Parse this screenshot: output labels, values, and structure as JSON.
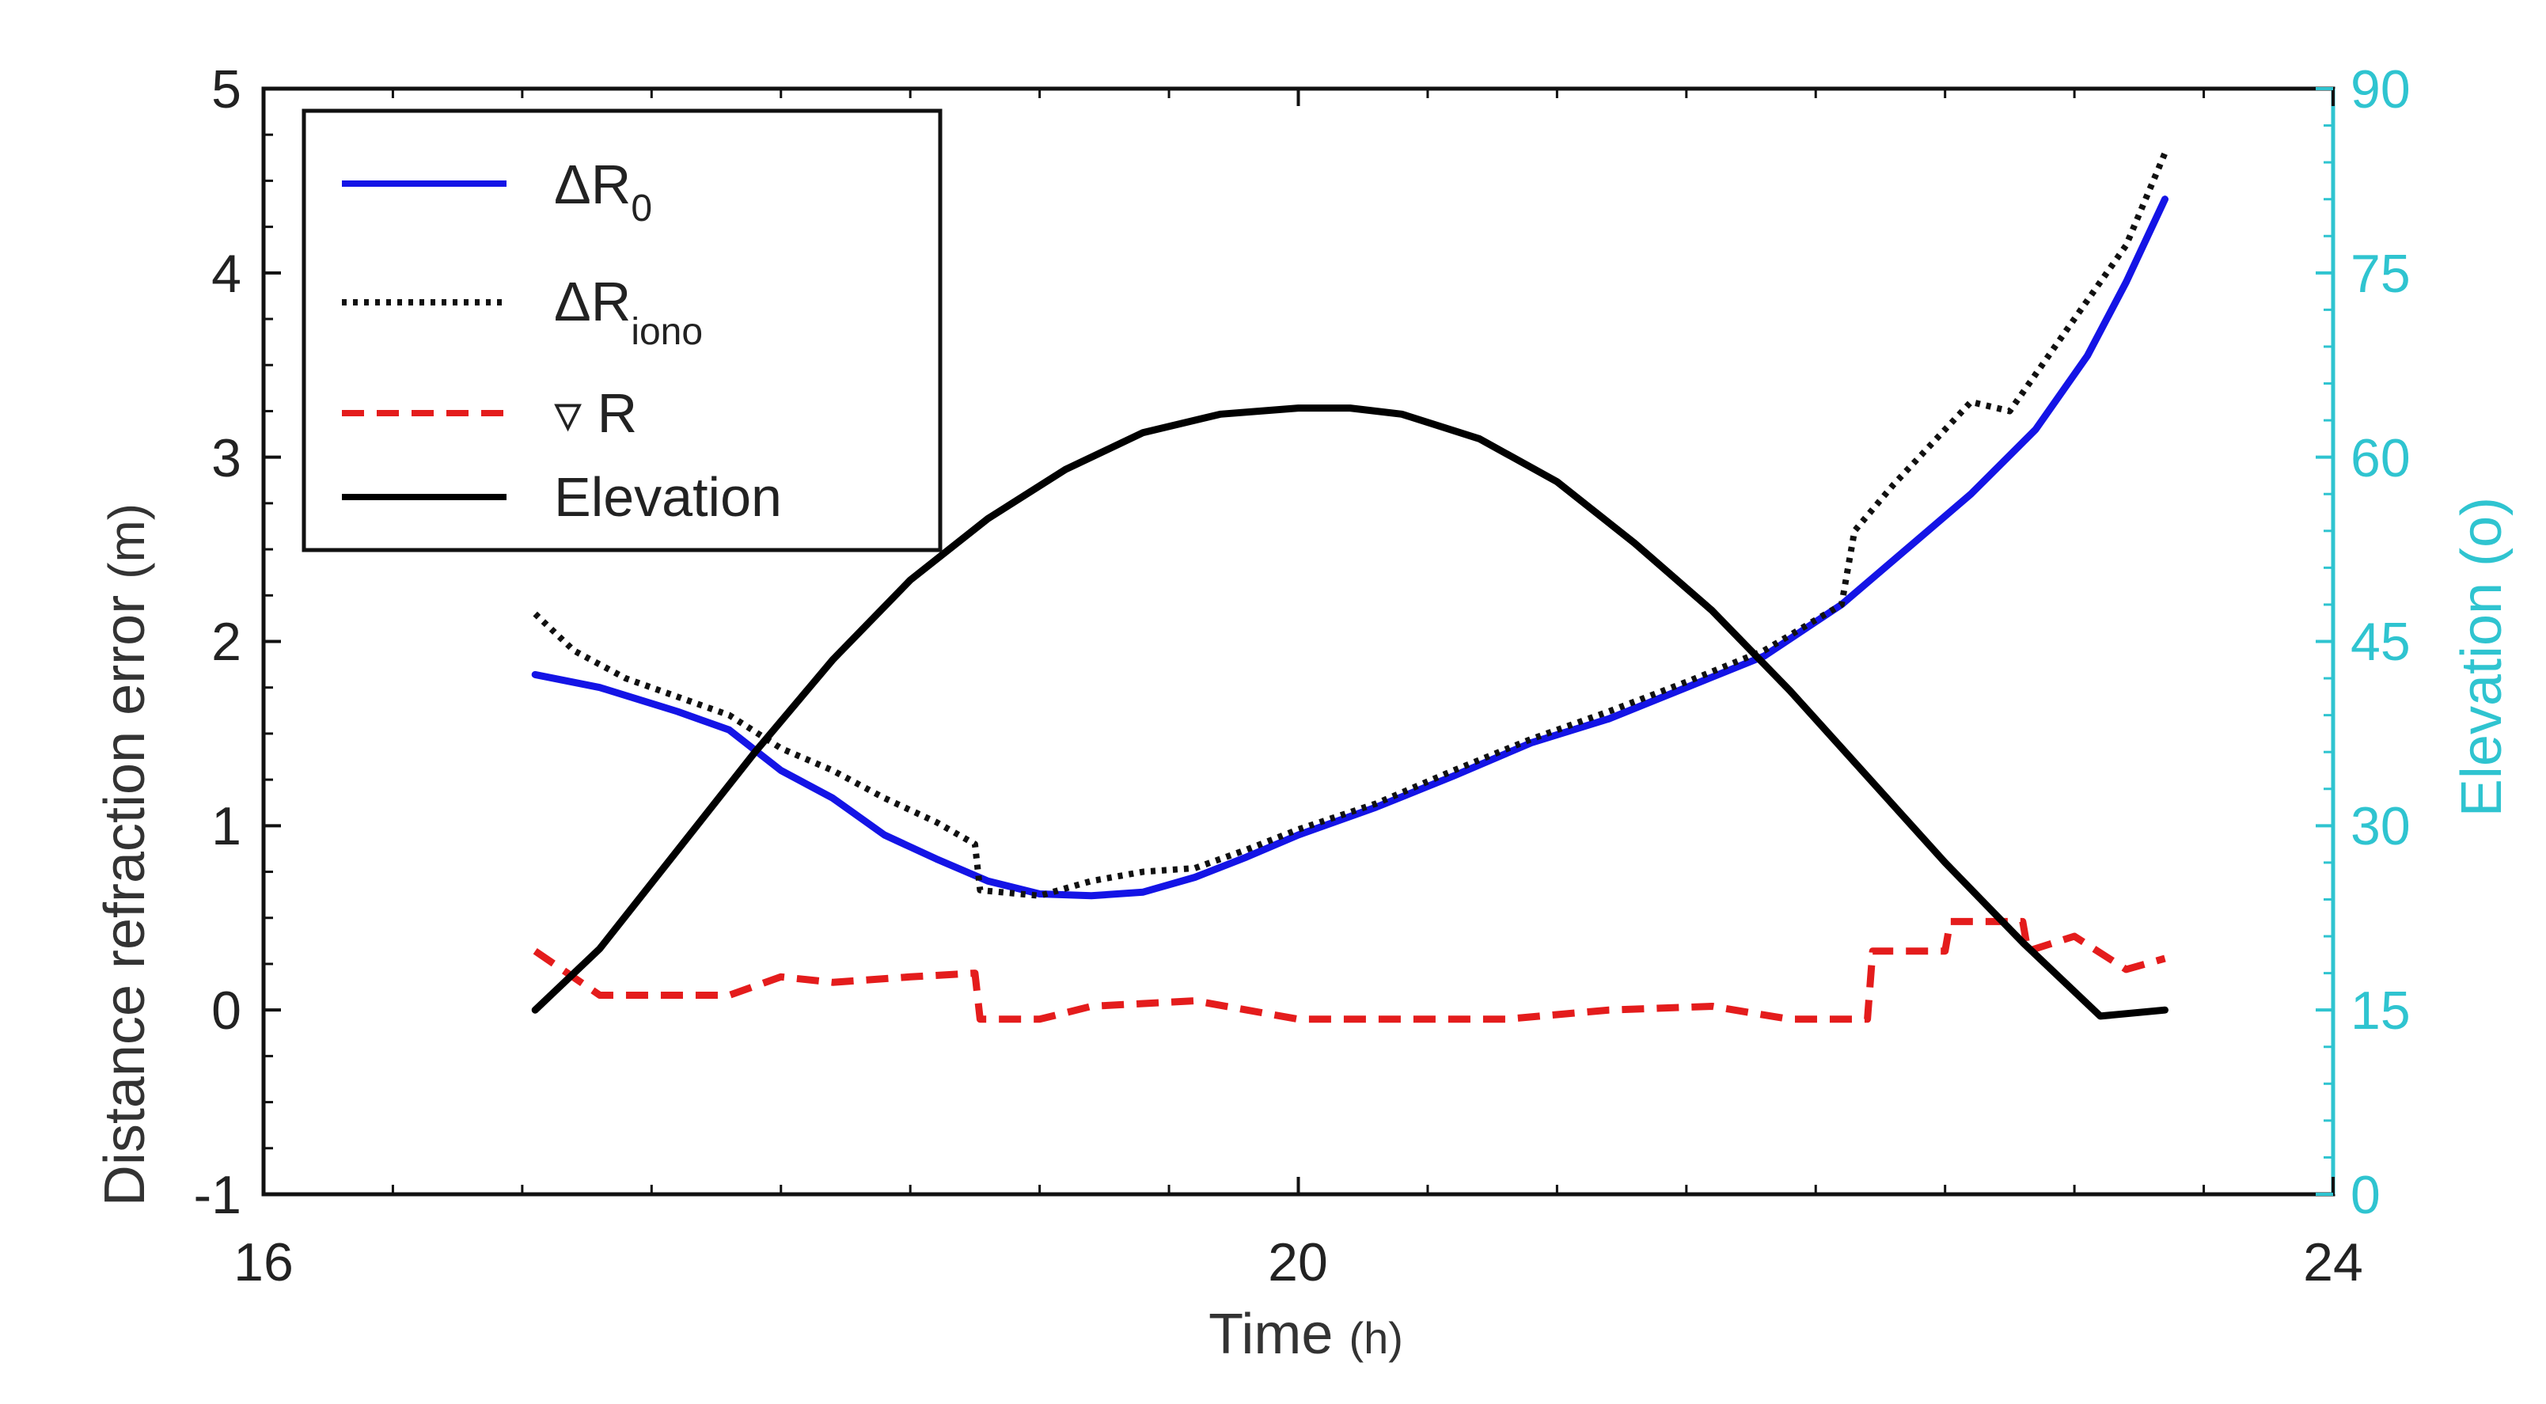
{
  "chart_data": {
    "type": "line",
    "title": "",
    "xlabel": "Time",
    "xlabel_unit": "(h)",
    "ylabel": "Distance refraction error",
    "ylabel_unit": "(m)",
    "y2label": "Elevation",
    "y2label_unit": "(o)",
    "xlim": [
      16,
      24
    ],
    "ylim": [
      -1,
      5
    ],
    "y2lim": [
      0,
      90
    ],
    "x_ticks": [
      "16",
      "20",
      "24"
    ],
    "y_ticks": [
      "5",
      "4",
      "3",
      "2",
      "1",
      "0",
      "-1"
    ],
    "y2_ticks": [
      "90",
      "75",
      "60",
      "45",
      "30",
      "15",
      "0"
    ],
    "legend_position": "top-left",
    "series": [
      {
        "name": "ΔR0",
        "legend_main": "ΔR",
        "legend_sub": "0",
        "color": "#1414e6",
        "style": "solid",
        "axis": "left",
        "x": [
          17.05,
          17.3,
          17.6,
          17.8,
          18.0,
          18.2,
          18.4,
          18.6,
          18.8,
          19.0,
          19.2,
          19.4,
          19.6,
          19.8,
          20.0,
          20.3,
          20.6,
          20.9,
          21.2,
          21.5,
          21.8,
          22.1,
          22.35,
          22.6,
          22.85,
          23.05,
          23.2,
          23.35
        ],
        "y": [
          1.82,
          1.75,
          1.62,
          1.52,
          1.3,
          1.15,
          0.95,
          0.82,
          0.7,
          0.63,
          0.62,
          0.64,
          0.72,
          0.83,
          0.95,
          1.1,
          1.27,
          1.45,
          1.58,
          1.75,
          1.92,
          2.2,
          2.5,
          2.8,
          3.15,
          3.55,
          3.95,
          4.4
        ]
      },
      {
        "name": "ΔRiono",
        "legend_main": "ΔR",
        "legend_sub": "iono",
        "color": "#111111",
        "style": "dotted",
        "axis": "left",
        "x": [
          17.05,
          17.2,
          17.4,
          17.6,
          17.8,
          18.0,
          18.2,
          18.4,
          18.6,
          18.75,
          18.77,
          19.0,
          19.2,
          19.4,
          19.6,
          19.8,
          20.0,
          20.3,
          20.6,
          20.9,
          21.2,
          21.5,
          21.8,
          22.1,
          22.15,
          22.3,
          22.5,
          22.6,
          22.75,
          23.0,
          23.2,
          23.35
        ],
        "y": [
          2.15,
          1.95,
          1.8,
          1.7,
          1.6,
          1.42,
          1.3,
          1.15,
          1.02,
          0.9,
          0.65,
          0.62,
          0.7,
          0.75,
          0.77,
          0.87,
          0.98,
          1.12,
          1.3,
          1.47,
          1.62,
          1.78,
          1.95,
          2.2,
          2.6,
          2.85,
          3.15,
          3.3,
          3.25,
          3.75,
          4.15,
          4.65
        ]
      },
      {
        "name": "∇ R",
        "legend_main": "▿ R",
        "legend_sub": "",
        "color": "#e41c1c",
        "style": "dashed",
        "axis": "left",
        "x": [
          17.05,
          17.3,
          17.5,
          17.8,
          18.0,
          18.2,
          18.5,
          18.75,
          18.77,
          19.0,
          19.2,
          19.6,
          20.0,
          20.4,
          20.8,
          21.2,
          21.6,
          21.9,
          22.2,
          22.22,
          22.5,
          22.52,
          22.8,
          22.82,
          23.0,
          23.2,
          23.35
        ],
        "y": [
          0.32,
          0.08,
          0.08,
          0.08,
          0.18,
          0.15,
          0.18,
          0.2,
          -0.05,
          -0.05,
          0.02,
          0.05,
          -0.05,
          -0.05,
          -0.05,
          0.0,
          0.02,
          -0.05,
          -0.05,
          0.32,
          0.32,
          0.48,
          0.48,
          0.32,
          0.4,
          0.22,
          0.28
        ]
      },
      {
        "name": "Elevation",
        "legend_main": "Elevation",
        "legend_sub": "",
        "color": "#000000",
        "style": "solid",
        "axis": "right",
        "x": [
          17.05,
          17.3,
          17.6,
          17.9,
          18.2,
          18.5,
          18.8,
          19.1,
          19.4,
          19.7,
          20.0,
          20.2,
          20.4,
          20.7,
          21.0,
          21.3,
          21.6,
          21.9,
          22.2,
          22.5,
          22.8,
          23.1,
          23.35
        ],
        "y": [
          15,
          20,
          28,
          36,
          43.5,
          50,
          55,
          59,
          62,
          63.5,
          64,
          64,
          63.5,
          61.5,
          58,
          53,
          47.5,
          41,
          34,
          27,
          20.5,
          14.5,
          15
        ]
      }
    ]
  }
}
